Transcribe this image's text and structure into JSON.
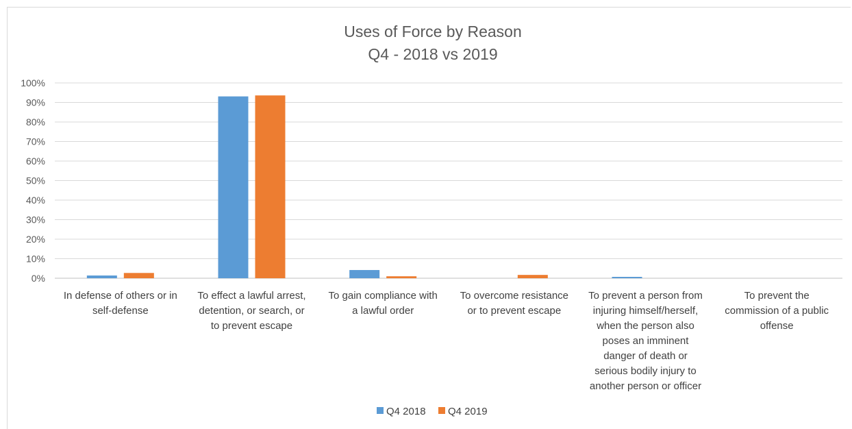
{
  "chart_data": {
    "type": "bar",
    "title": "Uses of Force by Reason",
    "subtitle": "Q4 - 2018 vs 2019",
    "xlabel": "",
    "ylabel": "",
    "ylim": [
      0,
      100
    ],
    "y_ticks": [
      "0%",
      "10%",
      "20%",
      "30%",
      "40%",
      "50%",
      "60%",
      "70%",
      "80%",
      "90%",
      "100%"
    ],
    "grid": true,
    "legend_position": "bottom",
    "categories": [
      "In defense of others or in self-defense",
      "To effect a lawful arrest, detention, or search, or to prevent escape",
      "To gain compliance with a lawful order",
      "To overcome resistance or to prevent escape",
      "To prevent a person from injuring himself/herself, when the person also poses an imminent danger of death or serious bodily injury to another person or officer",
      "To prevent the commission of a public offense"
    ],
    "category_lines": [
      [
        "In defense of others or in",
        "self-defense"
      ],
      [
        "To effect a lawful arrest,",
        "detention, or search, or",
        "to prevent escape"
      ],
      [
        "To gain compliance with",
        "a lawful order"
      ],
      [
        "To overcome resistance",
        "or to prevent escape"
      ],
      [
        "To prevent a person from",
        "injuring himself/herself,",
        "when the person also",
        "poses an imminent",
        "danger of death or",
        "serious bodily injury to",
        "another person or officer"
      ],
      [
        "To prevent the",
        "commission of a public",
        "offense"
      ]
    ],
    "series": [
      {
        "name": "Q4 2018",
        "color": "#5b9bd5",
        "values": [
          1.4,
          93.1,
          4.2,
          0.0,
          0.7,
          0.0
        ]
      },
      {
        "name": "Q4 2019",
        "color": "#ed7d31",
        "values": [
          2.7,
          93.6,
          1.0,
          1.7,
          0.0,
          0.0
        ]
      }
    ]
  }
}
